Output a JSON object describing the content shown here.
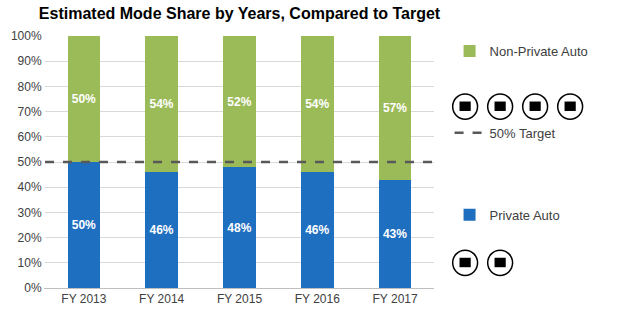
{
  "chart_data": {
    "type": "bar",
    "title": "Estimated Mode Share by Years, Compared to Target",
    "categories": [
      "FY 2013",
      "FY 2014",
      "FY 2015",
      "FY 2016",
      "FY 2017"
    ],
    "stacked": true,
    "data_labels": true,
    "legend": "right",
    "grid": true,
    "ylim": [
      0,
      100
    ],
    "yticks": [
      {
        "value": 0,
        "label": "0%"
      },
      {
        "value": 10,
        "label": "10%"
      },
      {
        "value": 20,
        "label": "20%"
      },
      {
        "value": 30,
        "label": "30%"
      },
      {
        "value": 40,
        "label": "40%"
      },
      {
        "value": 50,
        "label": "50%"
      },
      {
        "value": 60,
        "label": "60%"
      },
      {
        "value": 70,
        "label": "70%"
      },
      {
        "value": 80,
        "label": "80%"
      },
      {
        "value": 90,
        "label": "90%"
      },
      {
        "value": 100,
        "label": "100%"
      }
    ],
    "series": [
      {
        "name": "Private Auto",
        "color": "#1f6fc1",
        "values": [
          50,
          46,
          48,
          46,
          43
        ],
        "value_labels": [
          "50%",
          "46%",
          "48%",
          "46%",
          "43%"
        ]
      },
      {
        "name": "Non-Private Auto",
        "color": "#9bbb59",
        "values": [
          50,
          54,
          52,
          54,
          57
        ],
        "value_labels": [
          "50%",
          "54%",
          "52%",
          "54%",
          "57%"
        ]
      }
    ],
    "annotations": [
      {
        "text": "50% Target",
        "y": 50,
        "line_style": "dashed",
        "color": "#595959"
      }
    ]
  }
}
